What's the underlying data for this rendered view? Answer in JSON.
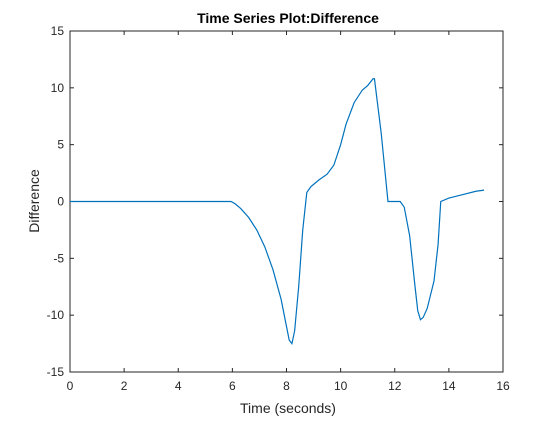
{
  "chart_data": {
    "type": "line",
    "title": "Time Series Plot:Difference",
    "xlabel": "Time (seconds)",
    "ylabel": "Difference",
    "xlim": [
      0,
      16
    ],
    "ylim": [
      -15,
      15
    ],
    "xticks": [
      0,
      2,
      4,
      6,
      8,
      10,
      12,
      14,
      16
    ],
    "yticks": [
      -15,
      -10,
      -5,
      0,
      5,
      10,
      15
    ],
    "grid": false,
    "series_color": "#0072BD",
    "series": [
      {
        "x": [
          0,
          5.95,
          6.1,
          6.3,
          6.6,
          6.9,
          7.2,
          7.5,
          7.8,
          8.0,
          8.1,
          8.2,
          8.3,
          8.45,
          8.6,
          8.75,
          8.9,
          9.2,
          9.5,
          9.75,
          10.0,
          10.2,
          10.5,
          10.8,
          11.0,
          11.2,
          11.25,
          11.5,
          11.75,
          12.0,
          12.2,
          12.35,
          12.55,
          12.75,
          12.85,
          12.95,
          13.05,
          13.2,
          13.45,
          13.6,
          13.7,
          14.0,
          14.5,
          15.0,
          15.3
        ],
        "y": [
          0,
          0,
          -0.2,
          -0.6,
          -1.4,
          -2.5,
          -4.0,
          -6.0,
          -8.6,
          -11.0,
          -12.2,
          -12.5,
          -11.4,
          -7.5,
          -2.5,
          0.8,
          1.3,
          1.9,
          2.4,
          3.2,
          5.0,
          6.8,
          8.7,
          9.8,
          10.2,
          10.8,
          10.8,
          6.0,
          0.0,
          0.0,
          0.0,
          -0.5,
          -3.0,
          -7.5,
          -9.6,
          -10.4,
          -10.2,
          -9.4,
          -7.0,
          -3.8,
          0.0,
          0.3,
          0.6,
          0.9,
          1.0
        ]
      }
    ]
  }
}
